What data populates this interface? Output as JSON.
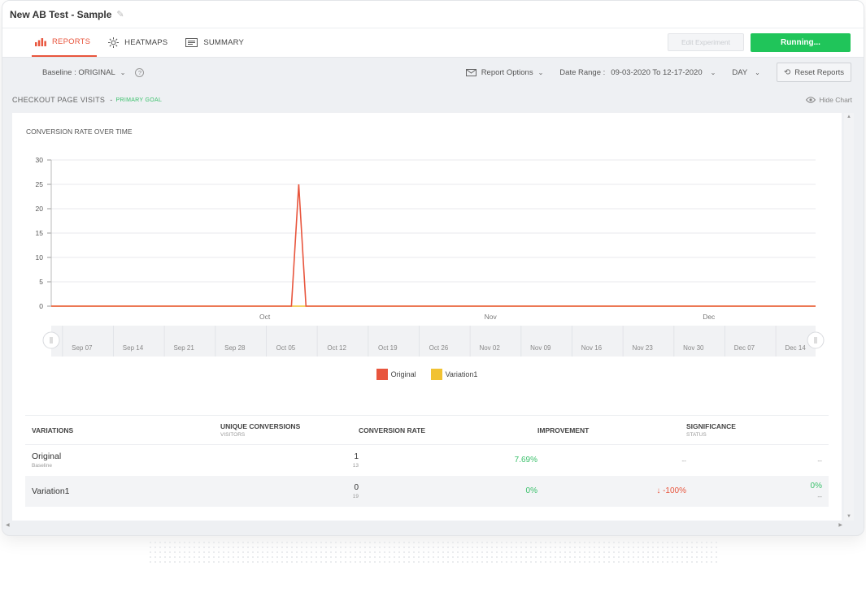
{
  "window": {
    "title": "New AB Test - Sample"
  },
  "tabs": [
    {
      "label": "REPORTS",
      "active": true,
      "icon": "bar-chart-icon"
    },
    {
      "label": "HEATMAPS",
      "active": false,
      "icon": "sun-icon"
    },
    {
      "label": "SUMMARY",
      "active": false,
      "icon": "document-icon"
    }
  ],
  "actions": {
    "edit_label": "Edit Experiment",
    "running_label": "Running..."
  },
  "toolbar": {
    "baseline_label": "Baseline : ORIGINAL",
    "help": "?",
    "report_options": "Report Options",
    "date_range_label": "Date Range :",
    "date_range_value": "09-03-2020 To 12-17-2020",
    "granularity": "DAY",
    "reset": "Reset Reports"
  },
  "goal": {
    "title": "CHECKOUT PAGE VISITS",
    "separator": "-",
    "tag": "PRIMARY GOAL",
    "hide_chart": "Hide Chart"
  },
  "chart_data": {
    "type": "line",
    "title": "CONVERSION RATE OVER TIME",
    "ylim": [
      0,
      30
    ],
    "yticks": [
      "0",
      "5",
      "10",
      "15",
      "20",
      "25",
      "30"
    ],
    "month_labels": [
      "Oct",
      "Nov",
      "Dec"
    ],
    "navigator_labels": [
      "Sep 07",
      "Sep 14",
      "Sep 21",
      "Sep 28",
      "Oct 05",
      "Oct 12",
      "Oct 19",
      "Oct 26",
      "Nov 02",
      "Nov 09",
      "Nov 16",
      "Nov 23",
      "Nov 30",
      "Dec 07",
      "Dec 14"
    ],
    "x_range": [
      "2020-09-03",
      "2020-12-17"
    ],
    "series": [
      {
        "name": "Original",
        "color": "#e8553d",
        "points": [
          [
            "2020-09-03",
            0
          ],
          [
            "2020-10-06",
            0
          ],
          [
            "2020-10-07",
            25
          ],
          [
            "2020-10-08",
            0
          ],
          [
            "2020-12-17",
            0
          ]
        ]
      },
      {
        "name": "Variation1",
        "color": "#f1c232",
        "points": [
          [
            "2020-09-03",
            0
          ],
          [
            "2020-12-17",
            0
          ]
        ]
      }
    ],
    "legend": "bottom-center"
  },
  "table": {
    "headers": {
      "variations": "VARIATIONS",
      "unique": "UNIQUE CONVERSIONS",
      "unique_sub": "VISITORS",
      "rate": "CONVERSION RATE",
      "improvement": "IMPROVEMENT",
      "significance": "SIGNIFICANCE",
      "significance_sub": "STATUS"
    },
    "rows": [
      {
        "name": "Original",
        "sub": "Baseline",
        "conversions": "1",
        "visitors": "13",
        "rate": "7.69%",
        "improvement": "--",
        "significance": "--",
        "status": ""
      },
      {
        "name": "Variation1",
        "sub": "",
        "conversions": "0",
        "visitors": "19",
        "rate": "0%",
        "improvement": "↓ -100%",
        "significance": "0%",
        "status": "--"
      }
    ]
  }
}
